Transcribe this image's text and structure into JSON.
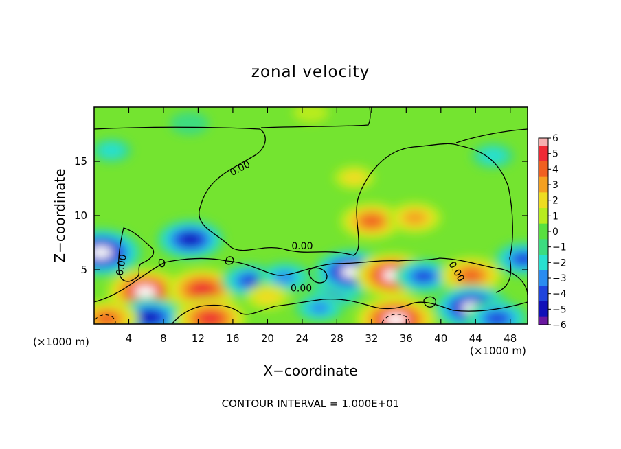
{
  "chart_data": {
    "type": "heatmap",
    "title": "zonal velocity",
    "xlabel": "X−coordinate",
    "ylabel": "Z−coordinate",
    "x_unit_left": "(×1000 m)",
    "x_unit_right": "(×1000 m)",
    "footer": "CONTOUR INTERVAL = 1.000E+01",
    "xlim": [
      0,
      50
    ],
    "ylim": [
      0,
      20
    ],
    "x_ticks": [
      4,
      8,
      12,
      16,
      20,
      24,
      28,
      32,
      36,
      40,
      44,
      48
    ],
    "x_tick_labels": [
      "4",
      "8",
      "12",
      "16",
      "20",
      "24",
      "28",
      "32",
      "36",
      "40",
      "44",
      "48"
    ],
    "y_ticks": [
      5,
      10,
      15
    ],
    "y_tick_labels": [
      "5",
      "10",
      "15"
    ],
    "contour_labels": [
      {
        "text": "0.00",
        "x": 17.0,
        "y": 14.1,
        "angle": -28
      },
      {
        "text": "0.00",
        "x": 3.5,
        "y": 5.4,
        "angle": -80
      },
      {
        "text": "0.00",
        "x": 24.0,
        "y": 6.9,
        "angle": 0
      },
      {
        "text": "0.00",
        "x": 23.9,
        "y": 3.0,
        "angle": 0
      },
      {
        "text": "0.00",
        "x": 41.5,
        "y": 4.7,
        "angle": 60
      }
    ],
    "colorbar": {
      "ticks": [
        "6",
        "5",
        "4",
        "3",
        "2",
        "1",
        "0",
        "−1",
        "−2",
        "−3",
        "−4",
        "−5",
        "−6"
      ],
      "colors": [
        "#f7b0b0",
        "#ef2a35",
        "#f06020",
        "#f4a020",
        "#eedd20",
        "#b8ec1e",
        "#58e040",
        "#3cdc80",
        "#28e0d0",
        "#2a8cf0",
        "#1e44dc",
        "#1010b8",
        "#6a18a0"
      ]
    },
    "anomalies": [
      {
        "sign": "neg",
        "x": 0.8,
        "y": 6.6,
        "strength": 6.0
      },
      {
        "sign": "pos",
        "x": 5.9,
        "y": 3.0,
        "strength": 5.5
      },
      {
        "sign": "pos",
        "x": 12.5,
        "y": 3.2,
        "strength": 5.0
      },
      {
        "sign": "neg",
        "x": 11.1,
        "y": 7.8,
        "strength": 4.5
      },
      {
        "sign": "neg",
        "x": 6.4,
        "y": 0.6,
        "strength": 4.5
      },
      {
        "sign": "pos",
        "x": 13.4,
        "y": 0.5,
        "strength": 5.0
      },
      {
        "sign": "neg",
        "x": 18.0,
        "y": 4.0,
        "strength": 3.5
      },
      {
        "sign": "neg",
        "x": 22.0,
        "y": 4.3,
        "strength": 3.0
      },
      {
        "sign": "neg",
        "x": 28.0,
        "y": 3.0,
        "strength": 3.0
      },
      {
        "sign": "neg",
        "x": 29.7,
        "y": 4.8,
        "strength": 5.5
      },
      {
        "sign": "pos",
        "x": 34.5,
        "y": 4.5,
        "strength": 5.5
      },
      {
        "sign": "pos",
        "x": 34.8,
        "y": 0.4,
        "strength": 6.0
      },
      {
        "sign": "pos",
        "x": 32.0,
        "y": 9.5,
        "strength": 4.0
      },
      {
        "sign": "pos",
        "x": 37.0,
        "y": 9.8,
        "strength": 3.0
      },
      {
        "sign": "neg",
        "x": 38.0,
        "y": 4.4,
        "strength": 3.5
      },
      {
        "sign": "pos",
        "x": 43.5,
        "y": 4.5,
        "strength": 4.0
      },
      {
        "sign": "neg",
        "x": 43.6,
        "y": 1.5,
        "strength": 5.5
      },
      {
        "sign": "neg",
        "x": 49.5,
        "y": 6.0,
        "strength": 3.5
      },
      {
        "sign": "pos",
        "x": 1.5,
        "y": 0.5,
        "strength": 4.0
      },
      {
        "sign": "neg",
        "x": 2.0,
        "y": 16.0,
        "strength": 1.6
      },
      {
        "sign": "neg",
        "x": 11.0,
        "y": 18.5,
        "strength": 1.4
      },
      {
        "sign": "neg",
        "x": 46.0,
        "y": 15.5,
        "strength": 1.8
      },
      {
        "sign": "pos",
        "x": 30.0,
        "y": 13.5,
        "strength": 1.6
      },
      {
        "sign": "pos",
        "x": 25.0,
        "y": 19.5,
        "strength": 1.0
      },
      {
        "sign": "neg",
        "x": 26.0,
        "y": 1.5,
        "strength": 2.5
      },
      {
        "sign": "pos",
        "x": 20.0,
        "y": 2.5,
        "strength": 2.0
      },
      {
        "sign": "neg",
        "x": 46.5,
        "y": 0.5,
        "strength": 4.0
      }
    ]
  }
}
